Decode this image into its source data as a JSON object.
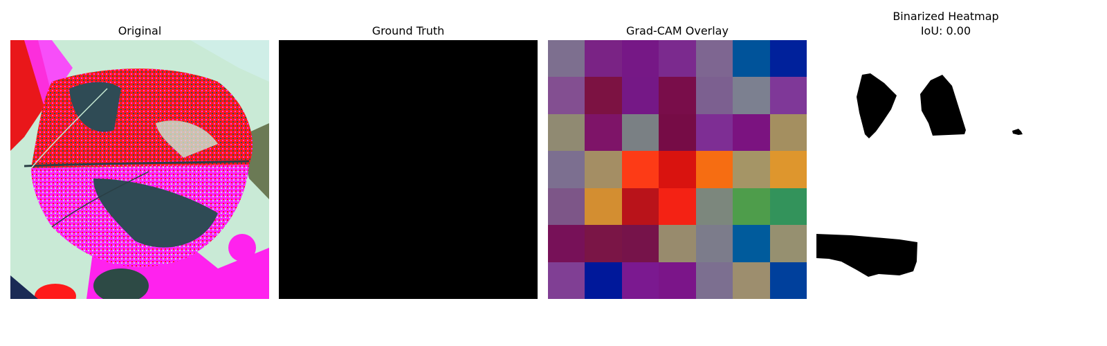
{
  "panels": {
    "original": {
      "title": "Original"
    },
    "ground_truth": {
      "title": "Ground Truth"
    },
    "gradcam": {
      "title": "Grad-CAM Overlay",
      "grid_rows": 7,
      "grid_cols": 7,
      "cells": [
        [
          "#7d6f8f",
          "#7a2385",
          "#761886",
          "#7b2a8e",
          "#7e6691",
          "#00539a",
          "#00219b"
        ],
        [
          "#834f91",
          "#7c1242",
          "#751886",
          "#790d4a",
          "#7c6090",
          "#7c8090",
          "#7f3898"
        ],
        [
          "#908a72",
          "#7e1468",
          "#7a8084",
          "#760c46",
          "#7e2e94",
          "#7b1380",
          "#a48f60"
        ],
        [
          "#7c6f90",
          "#a48e64",
          "#fd3b16",
          "#d9130f",
          "#f66d12",
          "#a59566",
          "#de962d"
        ],
        [
          "#7d5688",
          "#d38e31",
          "#b9131a",
          "#f42214",
          "#7c877d",
          "#4e9d4b",
          "#33935b"
        ],
        [
          "#771158",
          "#7a1546",
          "#76134a",
          "#988b6d",
          "#7c7c8b",
          "#005b9c",
          "#969070"
        ],
        [
          "#803f94",
          "#00189a",
          "#7b1990",
          "#7b1589",
          "#7c6f90",
          "#9d8e6e",
          "#00409c"
        ]
      ]
    },
    "binarized": {
      "title": "Binarized Heatmap",
      "subtitle": "IoU: 0.00"
    }
  }
}
